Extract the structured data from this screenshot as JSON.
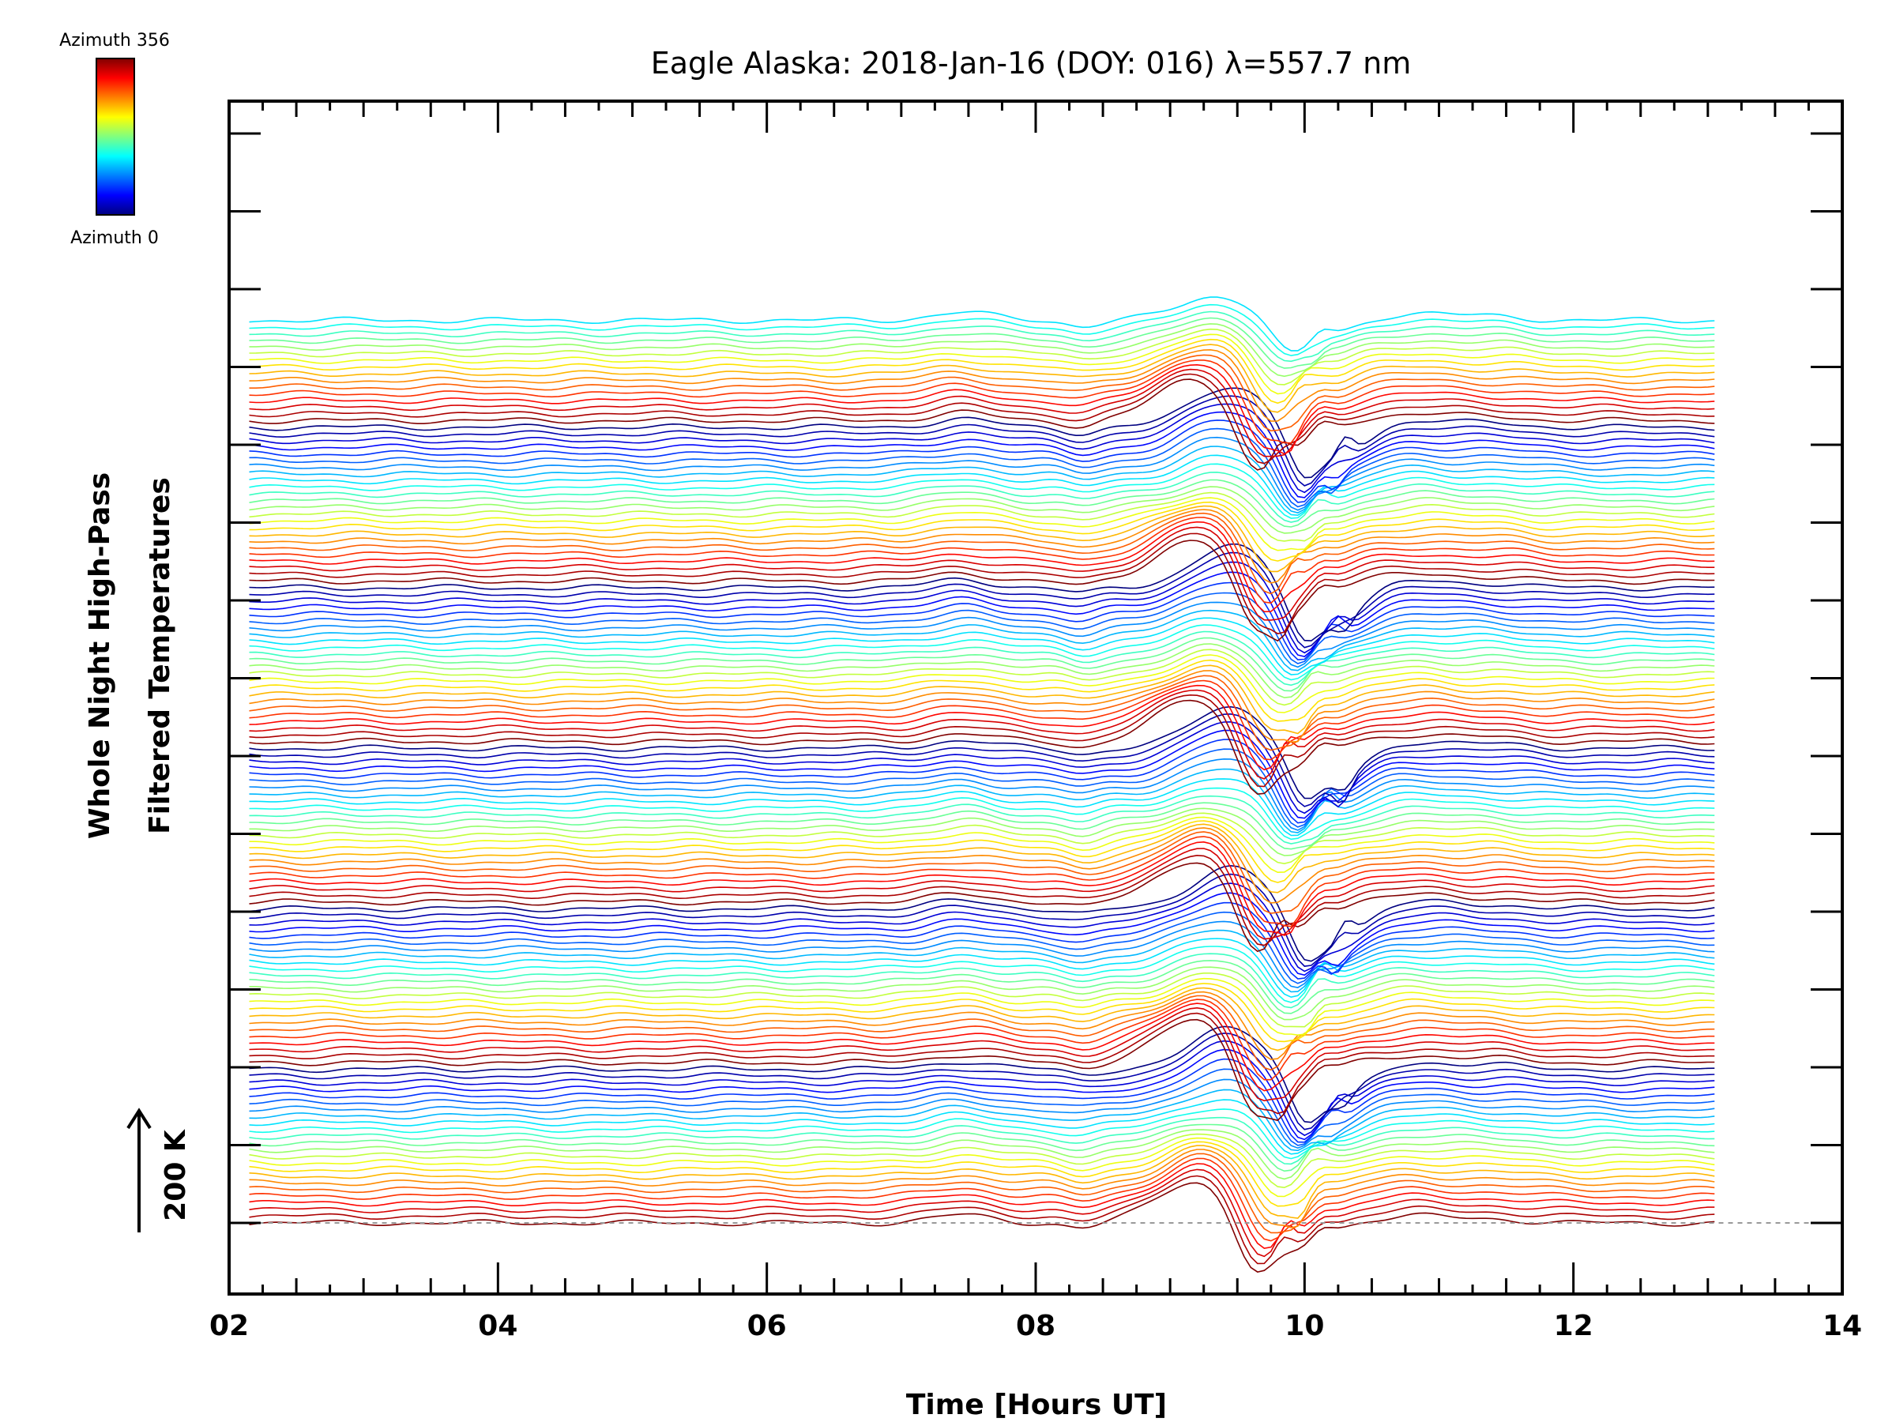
{
  "chart_data": {
    "type": "line",
    "title": "Eagle Alaska: 2018-Jan-16 (DOY: 016) λ=557.7 nm",
    "xlabel": "Time [Hours UT]",
    "ylabel_line1": "Whole Night High-Pass",
    "ylabel_line2": "Filtered Temperatures",
    "xlim": [
      2,
      14
    ],
    "x_ticks": [
      "02",
      "04",
      "06",
      "08",
      "10",
      "12",
      "14"
    ],
    "time_range": [
      2.15,
      13.05
    ],
    "scale_bar_label": "200 K",
    "colorbar": {
      "top_label": "Azimuth 356",
      "bottom_label": "Azimuth 0",
      "colormap": "rainbow"
    },
    "grid": false,
    "series_count": 136,
    "azimuth_range": [
      0,
      356
    ],
    "offset_per_series_K": 23,
    "baseline_style": "dashed gray"
  }
}
